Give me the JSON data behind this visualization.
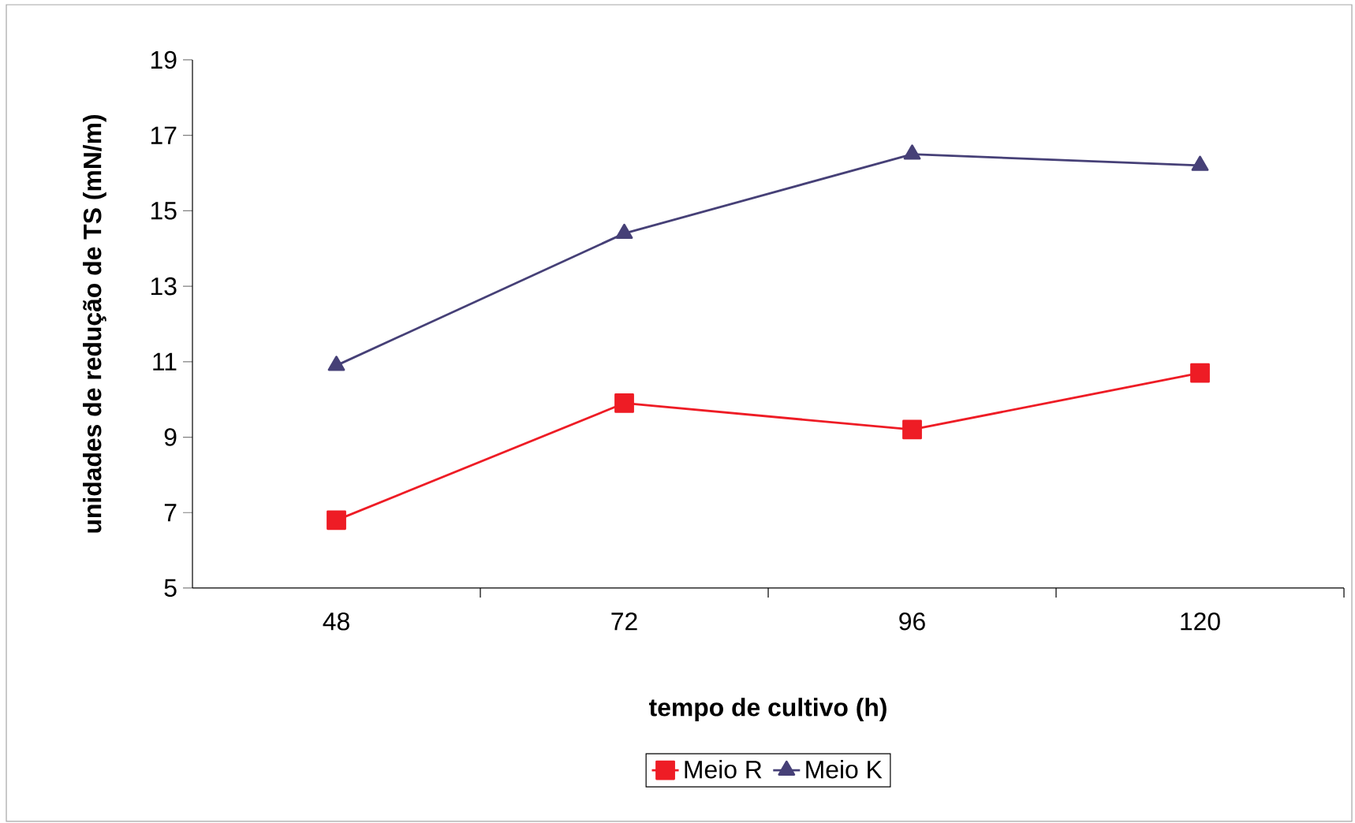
{
  "chart_data": {
    "type": "line",
    "xlabel": "tempo de cultivo (h)",
    "ylabel": "unidades de redução de TS (mN/m)",
    "categories": [
      "48",
      "72",
      "96",
      "120"
    ],
    "series": [
      {
        "name": "Meio R",
        "color": "#ee1c25",
        "marker": "square",
        "values": [
          6.8,
          9.9,
          9.2,
          10.7
        ]
      },
      {
        "name": "Meio K",
        "color": "#464077",
        "marker": "triangle",
        "values": [
          10.9,
          14.4,
          16.5,
          16.2
        ]
      }
    ],
    "ylim": [
      5,
      19
    ],
    "yticks": [
      5,
      7,
      9,
      11,
      13,
      15,
      17,
      19
    ],
    "legend": "bottom"
  }
}
